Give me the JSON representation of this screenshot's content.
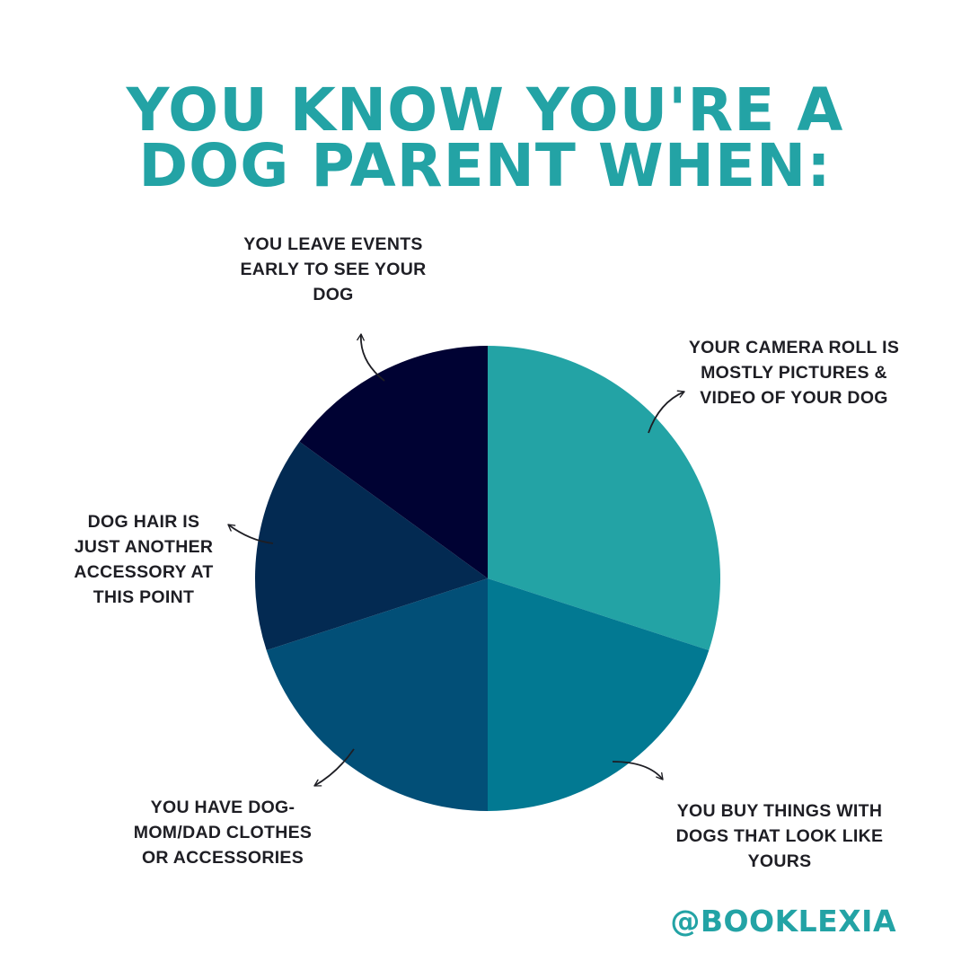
{
  "title": {
    "line1": "YOU KNOW YOU'RE A",
    "line2": "DOG PARENT WHEN:"
  },
  "handle": "@BOOKLEXIA",
  "colors": {
    "accent": "#23a3a5",
    "text": "#1e1e24"
  },
  "chart_data": {
    "type": "pie",
    "title": "YOU KNOW YOU'RE A DOG PARENT WHEN:",
    "legend": "none",
    "categories": [
      "YOUR CAMERA ROLL IS MOSTLY PICTURES & VIDEO OF YOUR DOG",
      "YOU BUY THINGS WITH DOGS THAT LOOK LIKE YOURS",
      "YOU HAVE DOG-MOM/DAD CLOTHES OR ACCESSORIES",
      "DOG HAIR IS JUST ANOTHER ACCESSORY AT THIS POINT",
      "YOU LEAVE EVENTS EARLY TO SEE YOUR DOG"
    ],
    "values": [
      30,
      20,
      20,
      15,
      15
    ],
    "colors": [
      "#23a3a5",
      "#027992",
      "#024f77",
      "#032a52",
      "#000233"
    ],
    "labels": [
      [
        "YOUR CAMERA ROLL IS",
        "MOSTLY PICTURES &",
        "VIDEO OF YOUR DOG"
      ],
      [
        "YOU BUY THINGS WITH",
        "DOGS THAT LOOK LIKE",
        "YOURS"
      ],
      [
        "YOU HAVE DOG-",
        "MOM/DAD CLOTHES",
        "OR ACCESSORIES"
      ],
      [
        "DOG HAIR IS",
        "JUST ANOTHER",
        "ACCESSORY AT",
        "THIS POINT"
      ],
      [
        "YOU LEAVE EVENTS",
        "EARLY TO SEE YOUR",
        "DOG"
      ]
    ]
  }
}
